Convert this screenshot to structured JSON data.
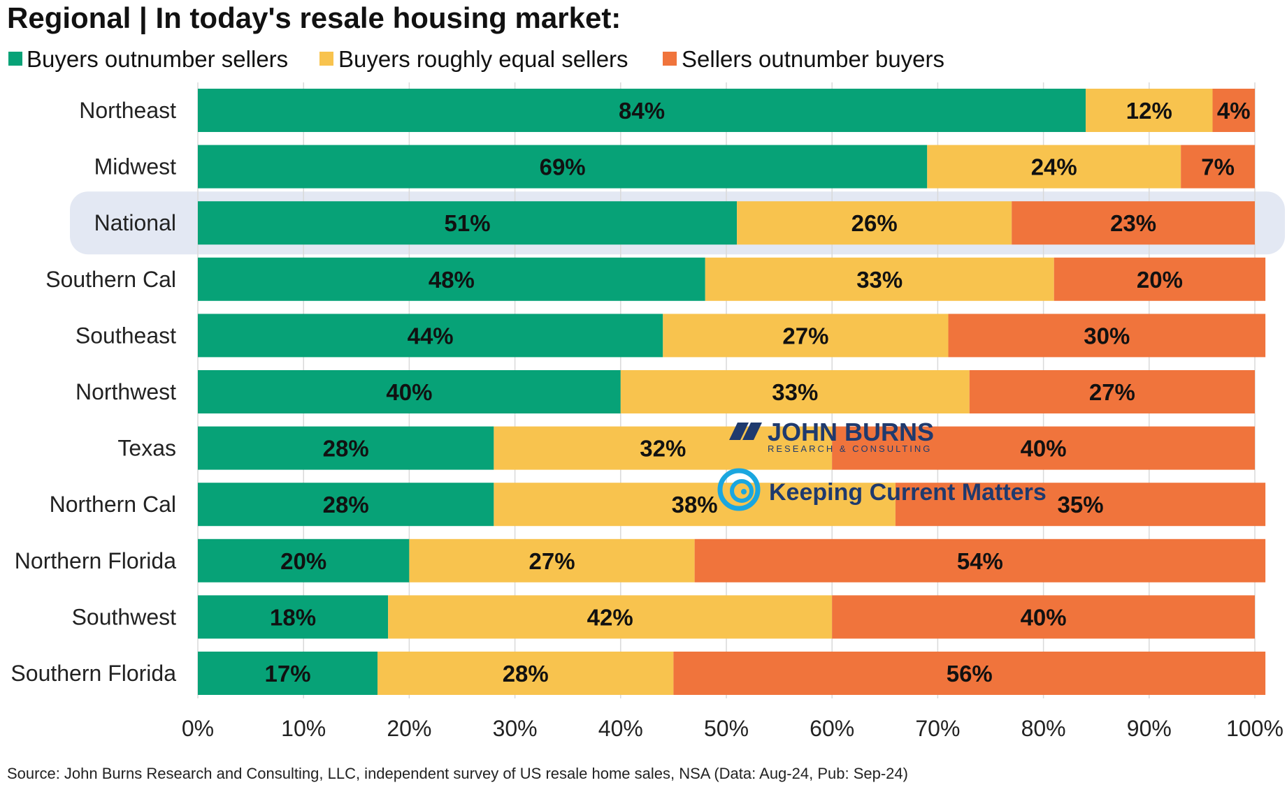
{
  "colors": {
    "buyers_outnumber": "#07a277",
    "roughly_equal": "#f8c34e",
    "sellers_outnumber": "#f0743c",
    "highlight": "#e3e8f3",
    "grid": "#d9d9d9"
  },
  "chart_data": {
    "type": "bar",
    "orientation": "horizontal",
    "stacked": true,
    "title": "Regional | In today's resale housing market:",
    "categories": [
      "Northeast",
      "Midwest",
      "National",
      "Southern Cal",
      "Southeast",
      "Northwest",
      "Texas",
      "Northern Cal",
      "Northern Florida",
      "Southwest",
      "Southern Florida"
    ],
    "highlighted_category": "National",
    "series": [
      {
        "name": "Buyers outnumber sellers",
        "color": "#07a277",
        "values": [
          84,
          69,
          51,
          48,
          44,
          40,
          28,
          28,
          20,
          18,
          17
        ],
        "labels": [
          "84%",
          "69%",
          "51%",
          "48%",
          "44%",
          "40%",
          "28%",
          "28%",
          "20%",
          "18%",
          "17%"
        ]
      },
      {
        "name": "Buyers roughly equal sellers",
        "color": "#f8c34e",
        "values": [
          12,
          24,
          26,
          33,
          27,
          33,
          32,
          38,
          27,
          42,
          28
        ],
        "labels": [
          "12%",
          "24%",
          "26%",
          "33%",
          "27%",
          "33%",
          "32%",
          "38%",
          "27%",
          "42%",
          "28%"
        ]
      },
      {
        "name": "Sellers outnumber buyers",
        "color": "#f0743c",
        "values": [
          4,
          7,
          23,
          20,
          30,
          27,
          40,
          35,
          54,
          40,
          56
        ],
        "labels": [
          "4%",
          "7%",
          "23%",
          "20%",
          "30%",
          "27%",
          "40%",
          "35%",
          "54%",
          "40%",
          "56%"
        ]
      }
    ],
    "xlim": [
      0,
      100
    ],
    "xticks": [
      "0%",
      "10%",
      "20%",
      "30%",
      "40%",
      "50%",
      "60%",
      "70%",
      "80%",
      "90%",
      "100%"
    ],
    "xlabel": "",
    "ylabel": "",
    "grid": true,
    "legend": "top-left"
  },
  "watermarks": {
    "john_burns": "JOHN BURNS",
    "john_burns_sub": "RESEARCH & CONSULTING",
    "kcm": "Keeping Current Matters"
  },
  "source": "Source: John Burns Research and Consulting, LLC, independent survey of US resale home sales, NSA (Data: Aug-24, Pub: Sep-24)"
}
